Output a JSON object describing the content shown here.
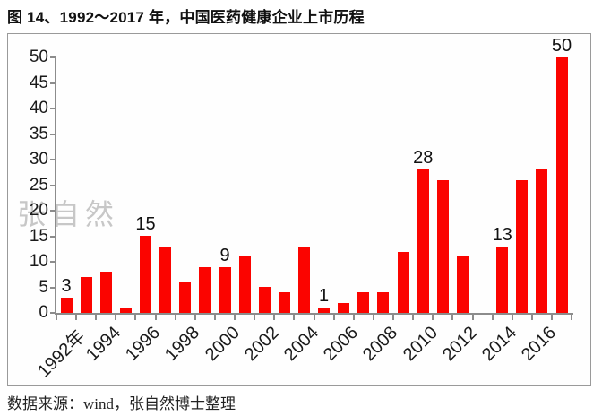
{
  "page": {
    "title": "图 14、1992～2017 年，中国医药健康企业上市历程",
    "watermark": "张自然",
    "source": "数据来源：wind，张自然博士整理"
  },
  "chart_data": {
    "type": "bar",
    "title": "图 14、1992～2017 年，中国医药健康企业上市历程",
    "categories": [
      "1992",
      "1993",
      "1994",
      "1995",
      "1996",
      "1997",
      "1998",
      "1999",
      "2000",
      "2001",
      "2002",
      "2003",
      "2004",
      "2005",
      "2006",
      "2007",
      "2008",
      "2009",
      "2010",
      "2011",
      "2012",
      "2013",
      "2014",
      "2015",
      "2016",
      "2017"
    ],
    "values": [
      3,
      7,
      8,
      1,
      15,
      13,
      6,
      9,
      9,
      11,
      5,
      4,
      13,
      1,
      2,
      4,
      4,
      12,
      28,
      26,
      11,
      0,
      13,
      26,
      28,
      50
    ],
    "ylim": [
      0,
      50
    ],
    "y_ticks": [
      0,
      5,
      10,
      15,
      20,
      25,
      30,
      35,
      40,
      45,
      50
    ],
    "x_tick_labels": [
      {
        "i": 0,
        "t": "1992年"
      },
      {
        "i": 2,
        "t": "1994"
      },
      {
        "i": 4,
        "t": "1996"
      },
      {
        "i": 6,
        "t": "1998"
      },
      {
        "i": 8,
        "t": "2000"
      },
      {
        "i": 10,
        "t": "2002"
      },
      {
        "i": 12,
        "t": "2004"
      },
      {
        "i": 14,
        "t": "2006"
      },
      {
        "i": 16,
        "t": "2008"
      },
      {
        "i": 18,
        "t": "2010"
      },
      {
        "i": 20,
        "t": "2012"
      },
      {
        "i": 22,
        "t": "2014"
      },
      {
        "i": 24,
        "t": "2016"
      }
    ],
    "data_labels": [
      {
        "i": 0,
        "t": "3"
      },
      {
        "i": 4,
        "t": "15"
      },
      {
        "i": 8,
        "t": "9"
      },
      {
        "i": 13,
        "t": "1"
      },
      {
        "i": 18,
        "t": "28"
      },
      {
        "i": 22,
        "t": "13"
      },
      {
        "i": 25,
        "t": "50"
      }
    ],
    "bar_color": "#fb0400",
    "axis_color": "#8c8c8c",
    "grid": false,
    "legend": false
  }
}
